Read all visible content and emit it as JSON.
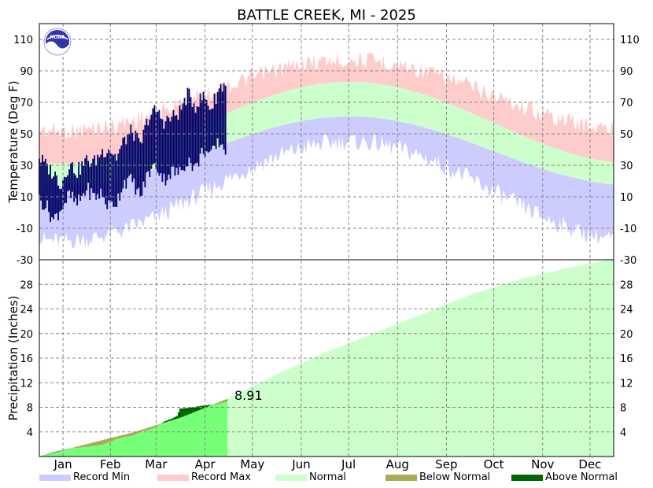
{
  "chart_data": {
    "type": "area",
    "title": "BATTLE CREEK, MI - 2025",
    "months": [
      "Jan",
      "Feb",
      "Mar",
      "Apr",
      "May",
      "Jun",
      "Jul",
      "Aug",
      "Sep",
      "Oct",
      "Nov",
      "Dec"
    ],
    "temperature": {
      "ylabel": "Temperature (Deg F)",
      "ylim": [
        -30,
        120
      ],
      "ticks": [
        110,
        90,
        70,
        50,
        30,
        10,
        -10,
        -30
      ],
      "record_min_range": [
        -20,
        50
      ],
      "record_max_range": [
        30,
        105
      ],
      "normal_low_range": [
        17,
        61
      ],
      "normal_high_range": [
        31,
        83
      ],
      "observed": {
        "day": [
          1,
          5,
          10,
          15,
          20,
          25,
          31,
          36,
          40,
          45,
          50,
          55,
          60,
          65,
          70,
          75,
          80,
          85,
          90,
          95,
          100,
          105,
          110,
          115,
          119
        ],
        "high": [
          35,
          30,
          25,
          18,
          31,
          26,
          33,
          32,
          38,
          41,
          35,
          46,
          52,
          42,
          60,
          65,
          58,
          60,
          64,
          75,
          68,
          74,
          66,
          79,
          82
        ],
        "low": [
          8,
          5,
          -5,
          3,
          11,
          5,
          15,
          10,
          12,
          4,
          7,
          20,
          20,
          10,
          25,
          30,
          21,
          26,
          25,
          34,
          28,
          40,
          36,
          45,
          40
        ]
      }
    },
    "precipitation": {
      "ylabel": "Precipitation (Inches)",
      "ylim": [
        0,
        32
      ],
      "ticks": [
        28,
        24,
        20,
        16,
        12,
        8,
        4
      ],
      "annotation": "8.91",
      "normal_cum": {
        "day": [
          1,
          32,
          60,
          91,
          121,
          152,
          182,
          213,
          244,
          274,
          305,
          335,
          365
        ],
        "value": [
          0,
          2.1,
          3.9,
          6.4,
          9.5,
          13.4,
          16.9,
          20.0,
          23.2,
          26.3,
          28.8,
          30.6,
          32.2
        ]
      },
      "observed_cum": {
        "day": [
          1,
          10,
          20,
          31,
          32,
          40,
          45,
          50,
          55,
          60,
          65,
          66,
          70,
          75,
          80,
          85,
          88,
          90,
          95,
          100,
          105,
          110,
          115,
          119
        ],
        "value": [
          0,
          0.7,
          1.3,
          1.6,
          1.6,
          1.9,
          2.3,
          2.9,
          3.2,
          3.4,
          4.0,
          4.2,
          4.3,
          4.9,
          5.7,
          6.2,
          6.6,
          7.8,
          7.9,
          8.1,
          8.3,
          8.4,
          8.6,
          8.91
        ]
      }
    },
    "legend": [
      {
        "label": "Record Min",
        "color": "#ccccff"
      },
      {
        "label": "Record Max",
        "color": "#ffcccc"
      },
      {
        "label": "Normal",
        "color": "#ccffcc"
      },
      {
        "label": "Below Normal",
        "color": "#aaaa55"
      },
      {
        "label": "Above Normal",
        "color": "#006600"
      }
    ],
    "colors": {
      "record_min": "#ccccff",
      "record_max": "#ffcccc",
      "normal": "#ccffcc",
      "observed_temp": "#000066",
      "precip_fill": "#77ff77",
      "below_normal": "#aaaa55",
      "above_normal": "#006600"
    },
    "logo_text": "NOAA"
  }
}
